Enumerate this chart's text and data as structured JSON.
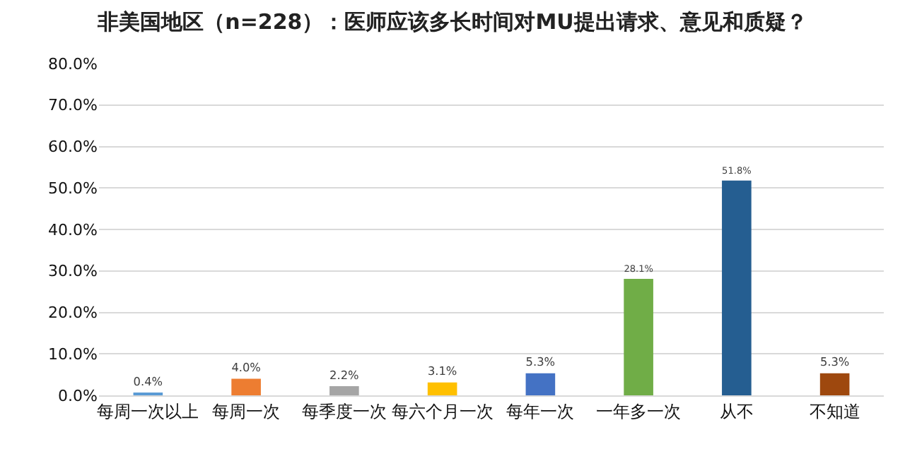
{
  "chart_data": {
    "type": "bar",
    "title": "非美国地区（n=228）：医师应该多长时间对MU提出请求、意见和质疑？",
    "categories": [
      "每周一次以上",
      "每周一次",
      "每季度一次",
      "每六个月一次",
      "每年一次",
      "一年多一次",
      "从不",
      "不知道"
    ],
    "values": [
      0.4,
      4.0,
      2.2,
      3.1,
      5.3,
      28.1,
      51.8,
      5.3
    ],
    "colors": [
      "#5b9bd5",
      "#ed7d31",
      "#a5a5a5",
      "#ffc000",
      "#4472c4",
      "#70ad47",
      "#255e91",
      "#9e480e"
    ],
    "value_labels": [
      "0.4%",
      "4.0%",
      "2.2%",
      "3.1%",
      "5.3%",
      "28.1%",
      "51.8%",
      "5.3%"
    ],
    "ylim": [
      0,
      80
    ],
    "yticks": [
      {
        "value": 0,
        "label": "0.0%"
      },
      {
        "value": 10,
        "label": "10.0%"
      },
      {
        "value": 20,
        "label": "20.0%"
      },
      {
        "value": 30,
        "label": "30.0%"
      },
      {
        "value": 40,
        "label": "40.0%"
      },
      {
        "value": 50,
        "label": "50.0%"
      },
      {
        "value": 60,
        "label": "60.0%"
      },
      {
        "value": 70,
        "label": "70.0%"
      },
      {
        "value": 80,
        "label": "80.0%"
      }
    ],
    "grid": "y",
    "legend": false
  }
}
